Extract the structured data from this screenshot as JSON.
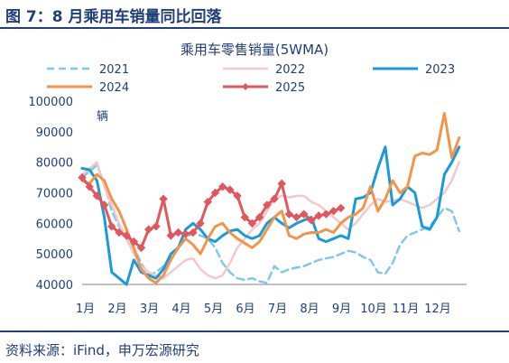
{
  "figure": {
    "title": "图 7：8 月乘用车销量同比回落",
    "source": "资料来源：iFind，申万宏源研究"
  },
  "chart_data": {
    "type": "line",
    "title": "乘用车零售销量(5WMA)",
    "unit": "辆",
    "categories": [
      "1月",
      "2月",
      "3月",
      "4月",
      "5月",
      "6月",
      "7月",
      "8月",
      "9月",
      "10月",
      "11月",
      "12月"
    ],
    "x_unit": "week",
    "xlim": [
      0,
      52
    ],
    "ylim": [
      40000,
      100000
    ],
    "yticks": [
      40000,
      50000,
      60000,
      70000,
      80000,
      90000,
      100000
    ],
    "ytick_labels": [
      "40000",
      "50000",
      "60000",
      "70000",
      "80000",
      "90000",
      "100000"
    ],
    "grid": false,
    "legend": "top",
    "series": [
      {
        "name": "2021",
        "color": "#7ec8ee",
        "dash": "8,5",
        "width": 2.5,
        "marker": false,
        "x": [
          0,
          1,
          2,
          3,
          4,
          5,
          6,
          7,
          8,
          9,
          10,
          11,
          12,
          13,
          14,
          15,
          16,
          17,
          18,
          19,
          20,
          21,
          22,
          23,
          24,
          25,
          26,
          27,
          28,
          29,
          30,
          31,
          32,
          33,
          34,
          35,
          36,
          37,
          38,
          39,
          40,
          41,
          42,
          43,
          44,
          45,
          46,
          47,
          48,
          49,
          50,
          51
        ],
        "y": [
          75000,
          77000,
          79000,
          73000,
          64000,
          59000,
          56000,
          52000,
          47000,
          43000,
          44000,
          46000,
          49000,
          52000,
          55000,
          57000,
          56000,
          55000,
          52000,
          47000,
          44000,
          42000,
          41500,
          42000,
          41000,
          40500,
          46000,
          44000,
          45000,
          45500,
          46000,
          47000,
          48000,
          48500,
          49000,
          50000,
          51000,
          50500,
          49000,
          48000,
          44000,
          43500,
          47000,
          53000,
          56000,
          57000,
          58000,
          59000,
          62000,
          65000,
          64000,
          57500
        ]
      },
      {
        "name": "2022",
        "color": "#f6c7c8",
        "dash": "",
        "width": 2.5,
        "marker": false,
        "x": [
          0,
          1,
          2,
          3,
          4,
          5,
          6,
          7,
          8,
          9,
          10,
          11,
          12,
          13,
          14,
          15,
          16,
          17,
          18,
          19,
          20,
          21,
          22,
          23,
          24,
          25,
          26,
          27,
          28,
          29,
          30,
          31,
          32,
          33,
          34,
          35,
          36,
          37,
          38,
          39,
          40,
          41,
          42,
          43,
          44,
          45,
          46,
          47,
          48,
          49,
          50,
          51
        ],
        "y": [
          76000,
          78000,
          80000,
          72000,
          66000,
          60000,
          55000,
          50000,
          46000,
          44000,
          43000,
          42000,
          44000,
          46000,
          48000,
          48500,
          45000,
          43000,
          42000,
          43000,
          47000,
          52000,
          55000,
          58000,
          60000,
          64000,
          68000,
          69000,
          68500,
          69000,
          69000,
          67000,
          66000,
          64000,
          62000,
          60000,
          58000,
          60000,
          63000,
          66000,
          68000,
          67000,
          67500,
          68000,
          67000,
          66000,
          65000,
          66000,
          68000,
          70000,
          74000,
          80000
        ]
      },
      {
        "name": "2023",
        "color": "#1a9ad6",
        "dash": "",
        "width": 3,
        "marker": false,
        "x": [
          0,
          1,
          2,
          3,
          4,
          5,
          6,
          7,
          8,
          9,
          10,
          11,
          12,
          13,
          14,
          15,
          16,
          17,
          18,
          19,
          20,
          21,
          22,
          23,
          24,
          25,
          26,
          27,
          28,
          29,
          30,
          31,
          32,
          33,
          34,
          35,
          36,
          37,
          38,
          39,
          40,
          41,
          42,
          43,
          44,
          45,
          46,
          47,
          48,
          49,
          50,
          51
        ],
        "y": [
          78000,
          77500,
          74000,
          62000,
          44000,
          42000,
          40000,
          48000,
          44000,
          43000,
          42000,
          45000,
          50000,
          52000,
          58000,
          60000,
          58000,
          55000,
          54000,
          56000,
          57500,
          58000,
          56000,
          55000,
          56000,
          60000,
          62000,
          60000,
          58500,
          60000,
          61000,
          62000,
          55000,
          54000,
          55000,
          56000,
          55000,
          68000,
          68500,
          70000,
          78000,
          85000,
          66000,
          68000,
          72000,
          70000,
          59000,
          58000,
          62000,
          76000,
          80000,
          85000
        ]
      },
      {
        "name": "2024",
        "color": "#f2954a",
        "dash": "",
        "width": 3,
        "marker": false,
        "x": [
          0,
          1,
          2,
          3,
          4,
          5,
          6,
          7,
          8,
          9,
          10,
          11,
          12,
          13,
          14,
          15,
          16,
          17,
          18,
          19,
          20,
          21,
          22,
          23,
          24,
          25,
          26,
          27,
          28,
          29,
          30,
          31,
          32,
          33,
          34,
          35,
          36,
          37,
          38,
          39,
          40,
          41,
          42,
          43,
          44,
          45,
          46,
          47,
          48,
          49,
          50,
          51
        ],
        "y": [
          74000,
          73000,
          76000,
          74000,
          68000,
          64000,
          58000,
          52000,
          45000,
          42000,
          40500,
          43000,
          48000,
          52000,
          55000,
          53000,
          50000,
          55000,
          59000,
          60000,
          57000,
          55000,
          53500,
          52000,
          54000,
          58000,
          62000,
          64000,
          56000,
          55000,
          56500,
          57000,
          57000,
          58000,
          57000,
          60000,
          62000,
          63000,
          65000,
          72000,
          64000,
          68000,
          74000,
          70000,
          72000,
          82000,
          83000,
          82500,
          84000,
          96000,
          81500,
          88000
        ]
      },
      {
        "name": "2025",
        "color": "#e0575e",
        "dash": "",
        "width": 3,
        "marker": true,
        "x": [
          0,
          1,
          2,
          3,
          4,
          5,
          6,
          7,
          8,
          9,
          10,
          11,
          12,
          13,
          14,
          15,
          16,
          17,
          18,
          19,
          20,
          21,
          22,
          23,
          24,
          25,
          26,
          27,
          28,
          29,
          30,
          31,
          32,
          33,
          34,
          35
        ],
        "y": [
          75000,
          72000,
          69000,
          66000,
          59000,
          57000,
          56000,
          54000,
          52000,
          58000,
          59000,
          68000,
          56000,
          57000,
          56500,
          57000,
          60000,
          67000,
          70000,
          72000,
          71000,
          69000,
          62000,
          60000,
          62000,
          66000,
          68000,
          73000,
          63000,
          62000,
          63000,
          61000,
          62500,
          63000,
          64000,
          65000
        ]
      }
    ]
  }
}
